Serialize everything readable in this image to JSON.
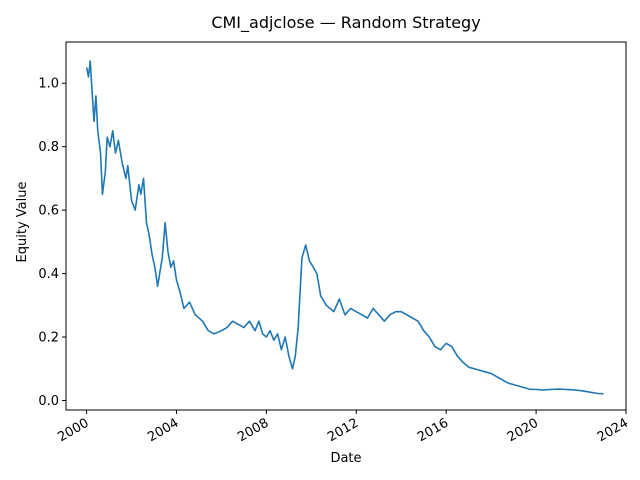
{
  "chart_data": {
    "type": "line",
    "title": "CMI_adjclose — Random Strategy",
    "xlabel": "Date",
    "ylabel": "Equity Value",
    "x_ticks": [
      "2000",
      "2004",
      "2008",
      "2012",
      "2016",
      "2020",
      "2024"
    ],
    "y_ticks": [
      "0.0",
      "0.2",
      "0.4",
      "0.6",
      "0.8",
      "1.0"
    ],
    "xlim": [
      "1999-02-01",
      "2024-01-01"
    ],
    "ylim": [
      -0.03,
      1.13
    ],
    "grid": false,
    "legend": "none",
    "line_color": "#1f77b4",
    "series": [
      {
        "x": [
          "2000-01-03",
          "2000-02-01",
          "2000-03-01",
          "2000-04-01",
          "2000-05-01",
          "2000-06-01",
          "2000-07-01",
          "2000-08-15",
          "2000-09-15",
          "2000-11-01",
          "2000-12-01",
          "2001-01-15",
          "2001-03-01",
          "2001-04-15",
          "2001-06-01",
          "2001-08-01",
          "2001-10-01",
          "2001-11-01",
          "2002-01-01",
          "2002-03-01",
          "2002-05-01",
          "2002-06-01",
          "2002-07-15",
          "2002-09-01",
          "2002-10-15",
          "2002-12-01",
          "2003-01-15",
          "2003-03-01",
          "2003-05-15",
          "2003-07-01",
          "2003-08-15",
          "2003-10-01",
          "2003-11-15",
          "2004-01-01",
          "2004-03-01",
          "2004-05-01",
          "2004-08-01",
          "2004-11-01",
          "2005-03-01",
          "2005-06-01",
          "2005-09-01",
          "2006-01-01",
          "2006-04-01",
          "2006-07-01",
          "2006-10-01",
          "2007-01-01",
          "2007-04-01",
          "2007-07-01",
          "2007-09-01",
          "2007-11-01",
          "2008-01-01",
          "2008-03-01",
          "2008-05-01",
          "2008-07-01",
          "2008-09-01",
          "2008-11-01",
          "2009-01-01",
          "2009-03-01",
          "2009-04-15",
          "2009-06-01",
          "2009-08-01",
          "2009-10-01",
          "2009-12-01",
          "2010-02-01",
          "2010-04-01",
          "2010-06-01",
          "2010-09-01",
          "2011-01-01",
          "2011-04-01",
          "2011-07-01",
          "2011-10-01",
          "2012-01-01",
          "2012-04-01",
          "2012-07-01",
          "2012-10-01",
          "2013-01-01",
          "2013-04-01",
          "2013-07-01",
          "2013-10-01",
          "2014-01-01",
          "2014-04-01",
          "2014-07-01",
          "2014-10-01",
          "2015-01-01",
          "2015-04-01",
          "2015-07-01",
          "2015-10-01",
          "2016-01-01",
          "2016-04-01",
          "2016-07-01",
          "2016-10-01",
          "2017-01-01",
          "2017-04-01",
          "2017-07-01",
          "2017-10-01",
          "2018-01-01",
          "2018-04-01",
          "2018-07-01",
          "2018-10-01",
          "2019-01-01",
          "2019-04-01",
          "2019-07-01",
          "2019-10-01",
          "2020-01-01",
          "2020-04-01",
          "2020-07-01",
          "2020-10-01",
          "2021-01-01",
          "2021-04-01",
          "2021-07-01",
          "2021-10-01",
          "2022-01-01",
          "2022-04-01",
          "2022-07-01",
          "2022-10-01",
          "2022-12-30"
        ],
        "y": [
          1.05,
          1.02,
          1.07,
          0.97,
          0.88,
          0.96,
          0.85,
          0.78,
          0.65,
          0.72,
          0.83,
          0.8,
          0.85,
          0.78,
          0.82,
          0.75,
          0.7,
          0.74,
          0.63,
          0.6,
          0.68,
          0.65,
          0.7,
          0.56,
          0.52,
          0.46,
          0.42,
          0.36,
          0.45,
          0.56,
          0.47,
          0.42,
          0.44,
          0.38,
          0.34,
          0.29,
          0.31,
          0.27,
          0.25,
          0.22,
          0.21,
          0.22,
          0.23,
          0.25,
          0.24,
          0.23,
          0.25,
          0.22,
          0.25,
          0.21,
          0.2,
          0.22,
          0.19,
          0.21,
          0.16,
          0.2,
          0.14,
          0.1,
          0.14,
          0.23,
          0.45,
          0.49,
          0.44,
          0.42,
          0.4,
          0.33,
          0.3,
          0.28,
          0.32,
          0.27,
          0.29,
          0.28,
          0.27,
          0.26,
          0.29,
          0.27,
          0.25,
          0.27,
          0.28,
          0.28,
          0.27,
          0.26,
          0.25,
          0.22,
          0.2,
          0.17,
          0.16,
          0.18,
          0.17,
          0.14,
          0.12,
          0.105,
          0.1,
          0.095,
          0.09,
          0.085,
          0.075,
          0.065,
          0.055,
          0.05,
          0.045,
          0.04,
          0.035,
          0.035,
          0.033,
          0.034,
          0.035,
          0.036,
          0.035,
          0.034,
          0.033,
          0.031,
          0.028,
          0.025,
          0.022,
          0.021
        ]
      }
    ]
  }
}
